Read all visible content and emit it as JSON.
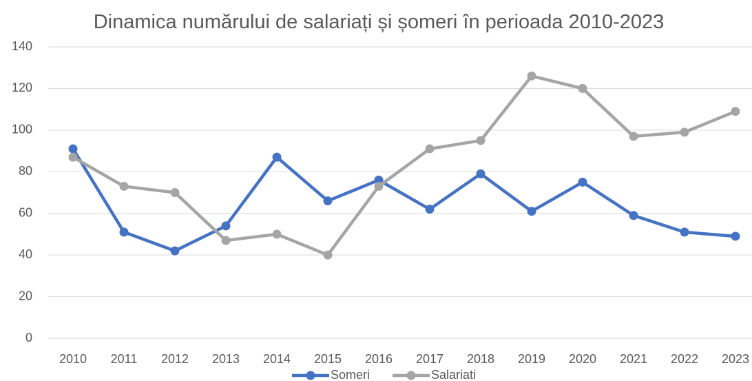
{
  "chart_data": {
    "type": "line",
    "title": "Dinamica numărului de salariați și șomeri în perioada 2010-2023",
    "categories": [
      "2010",
      "2011",
      "2012",
      "2013",
      "2014",
      "2015",
      "2016",
      "2017",
      "2018",
      "2019",
      "2020",
      "2021",
      "2022",
      "2023"
    ],
    "series": [
      {
        "name": "Someri",
        "color": "#4472c4",
        "values": [
          91,
          51,
          42,
          54,
          87,
          66,
          76,
          62,
          79,
          61,
          75,
          59,
          51,
          49
        ]
      },
      {
        "name": "Salariati",
        "color": "#a5a5a5",
        "values": [
          87,
          73,
          70,
          47,
          50,
          40,
          73,
          91,
          95,
          126,
          120,
          97,
          99,
          109
        ]
      }
    ],
    "ylim": [
      0,
      140
    ],
    "yticks": [
      0,
      20,
      40,
      60,
      80,
      100,
      120,
      140
    ],
    "grid": true,
    "legend": "bottom"
  }
}
